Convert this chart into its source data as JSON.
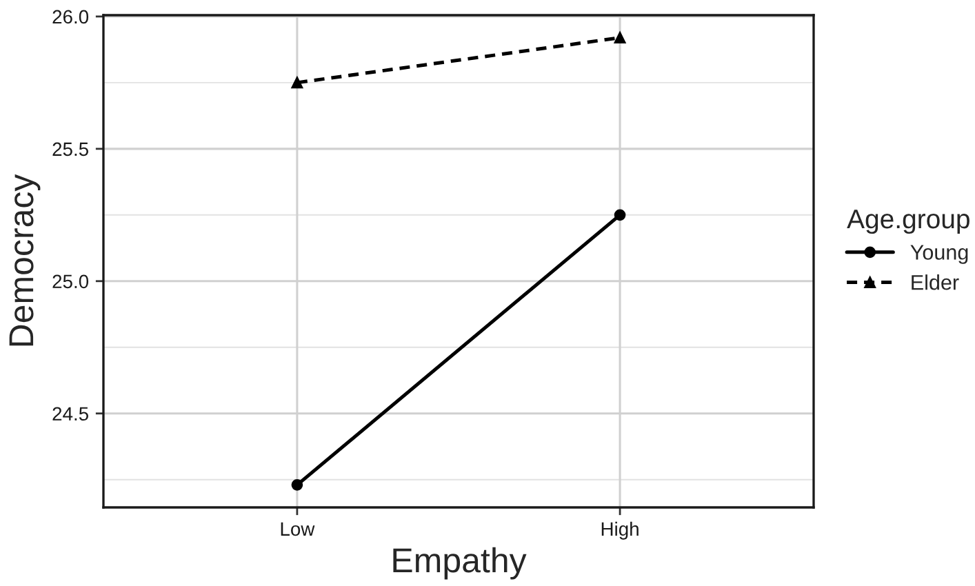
{
  "chart_data": {
    "type": "line",
    "xlabel": "Empathy",
    "ylabel": "Democracy",
    "legend_title": "Age.group",
    "categories": [
      "Low",
      "High"
    ],
    "series": [
      {
        "name": "Young",
        "color": "#000000",
        "values": [
          24.23,
          25.25
        ],
        "marker": "circle",
        "line_style": "solid"
      },
      {
        "name": "Elder",
        "color": "#000000",
        "values": [
          25.75,
          25.92
        ],
        "marker": "triangle",
        "line_style": "dashed"
      }
    ],
    "ylim": [
      24.145,
      26.005
    ],
    "yticks": [
      {
        "value": 24.5,
        "label": "24.5"
      },
      {
        "value": 25.0,
        "label": "25.0"
      },
      {
        "value": 25.5,
        "label": "25.5"
      },
      {
        "value": 26.0,
        "label": "26.0"
      }
    ],
    "grid": true,
    "legend": "right"
  }
}
